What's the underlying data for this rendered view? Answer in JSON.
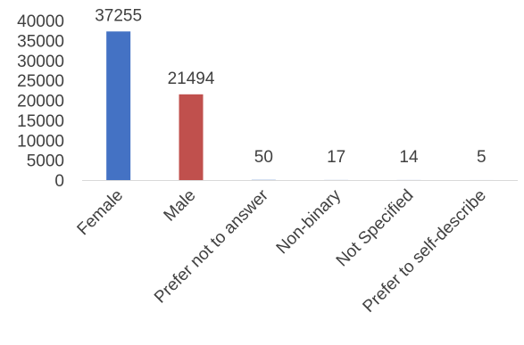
{
  "chart_data": {
    "type": "bar",
    "title": "",
    "xlabel": "",
    "ylabel": "",
    "ylim": [
      0,
      40000
    ],
    "yticks": [
      0,
      5000,
      10000,
      15000,
      20000,
      25000,
      30000,
      35000,
      40000
    ],
    "grid": false,
    "legend": "none",
    "categories": [
      "Female",
      "Male",
      "Prefer not to answer",
      "Non-binary",
      "Not Specified",
      "Prefer to self-describe"
    ],
    "values": [
      37255,
      21494,
      50,
      17,
      14,
      5
    ],
    "colors": [
      "#4472C4",
      "#C0504D",
      "#4472C4",
      "#4472C4",
      "#4472C4",
      "#4472C4"
    ],
    "data_labels": [
      "37255",
      "21494",
      "50",
      "17",
      "14",
      "5"
    ]
  }
}
